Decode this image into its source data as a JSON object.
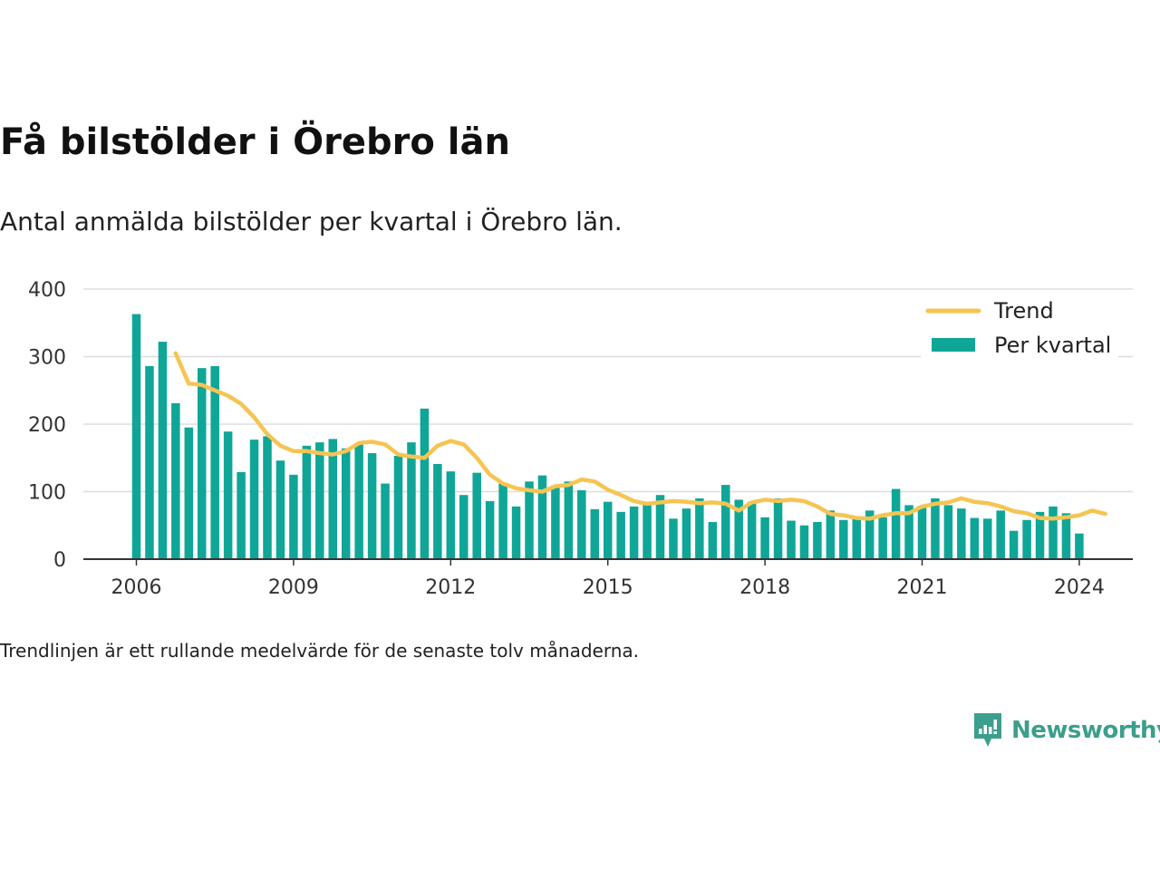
{
  "title": "Få bilstölder i Örebro län",
  "subtitle": "Antal anmälda bilstölder per kvartal i Örebro län.",
  "note": "Trendlinjen är ett rullande medelvärde för de senaste tolv månaderna.",
  "brand": {
    "name": "Newsworthy",
    "icon": "newsworthy-logo-icon"
  },
  "colors": {
    "bars": "#0fa698",
    "trend": "#f6c452",
    "grid": "#dddddd",
    "axis": "#333333",
    "brand": "#3c9e8c"
  },
  "chart_data": {
    "type": "bar",
    "x_start": "2006-Q1",
    "x_tick_labels": [
      "2006",
      "2009",
      "2012",
      "2015",
      "2018",
      "2021",
      "2024"
    ],
    "y_ticks": [
      0,
      100,
      200,
      300,
      400
    ],
    "ylim": [
      0,
      400
    ],
    "grid": true,
    "legend_position": "top-right",
    "series": [
      {
        "name": "Per kvartal",
        "type": "bar",
        "values": [
          363,
          286,
          322,
          231,
          195,
          283,
          286,
          189,
          129,
          177,
          182,
          146,
          125,
          168,
          173,
          178,
          164,
          170,
          157,
          112,
          153,
          173,
          223,
          141,
          130,
          95,
          128,
          86,
          112,
          78,
          115,
          124,
          109,
          115,
          102,
          74,
          85,
          70,
          78,
          82,
          95,
          60,
          75,
          90,
          55,
          110,
          88,
          85,
          62,
          90,
          57,
          50,
          55,
          72,
          58,
          63,
          72,
          62,
          104,
          80,
          79,
          90,
          80,
          75,
          61,
          60,
          72,
          42,
          58,
          70,
          78,
          68,
          38
        ]
      },
      {
        "name": "Trend",
        "type": "line",
        "start_index": 3,
        "values": [
          305,
          260,
          258,
          250,
          242,
          230,
          210,
          185,
          168,
          160,
          160,
          157,
          155,
          160,
          172,
          174,
          170,
          155,
          152,
          150,
          168,
          175,
          170,
          150,
          125,
          112,
          105,
          102,
          100,
          108,
          110,
          118,
          115,
          103,
          95,
          86,
          82,
          84,
          86,
          85,
          83,
          84,
          82,
          72,
          84,
          88,
          86,
          88,
          86,
          78,
          67,
          65,
          61,
          60,
          65,
          68,
          68,
          78,
          82,
          84,
          90,
          85,
          83,
          78,
          71,
          68,
          61,
          60,
          62,
          65,
          72,
          67
        ]
      }
    ]
  }
}
